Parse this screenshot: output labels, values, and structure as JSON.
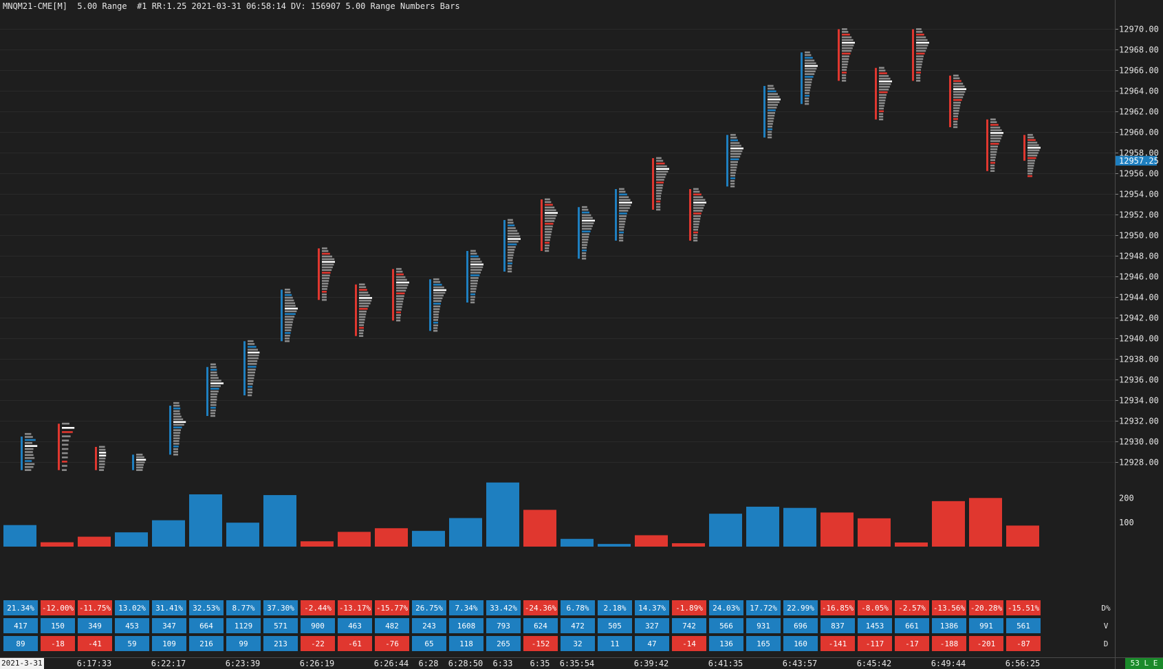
{
  "header": {
    "text": "MNQM21-CME[M]  5.00 Range  #1 RR:1.25 2021-03-31 06:58:14 DV: 156907 5.00 Range Numbers Bars"
  },
  "colors": {
    "background": "#1e1e1e",
    "up": "#1e7fc0",
    "down": "#e0372f",
    "profile": "#8c8c8c",
    "poc": "#ffffff",
    "grid": "#2a2a2a",
    "last_price_bg": "#1e7fc0",
    "status_bg": "#1a8a2a"
  },
  "status_badge": "53 L E",
  "date_badge": "2021-3-31",
  "chart_data": {
    "type": "bar",
    "price_axis": {
      "ticks": [
        "12928.00",
        "12930.00",
        "12932.00",
        "12934.00",
        "12936.00",
        "12938.00",
        "12940.00",
        "12942.00",
        "12944.00",
        "12946.00",
        "12948.00",
        "12950.00",
        "12952.00",
        "12954.00",
        "12956.00",
        "12958.00",
        "12960.00",
        "12962.00",
        "12964.00",
        "12966.00",
        "12968.00",
        "12970.00"
      ],
      "last_price": "12957.25",
      "range": [
        12926.5,
        12971.5
      ]
    },
    "volume_axis": {
      "ticks": [
        "100",
        "200"
      ],
      "range": [
        0,
        270
      ]
    },
    "time_labels": [
      {
        "bar": 2,
        "label": "6:17:33"
      },
      {
        "bar": 4,
        "label": "6:22:17"
      },
      {
        "bar": 6,
        "label": "6:23:39"
      },
      {
        "bar": 8,
        "label": "6:26:19"
      },
      {
        "bar": 10,
        "label": "6:26:44"
      },
      {
        "bar": 11,
        "label": "6:28"
      },
      {
        "bar": 12,
        "label": "6:28:50"
      },
      {
        "bar": 13,
        "label": "6:33"
      },
      {
        "bar": 14,
        "label": "6:35"
      },
      {
        "bar": 15,
        "label": "6:35:54"
      },
      {
        "bar": 17,
        "label": "6:39:42"
      },
      {
        "bar": 19,
        "label": "6:41:35"
      },
      {
        "bar": 21,
        "label": "6:43:57"
      },
      {
        "bar": 23,
        "label": "6:45:42"
      },
      {
        "bar": 25,
        "label": "6:49:44"
      },
      {
        "bar": 27,
        "label": "6:56:25"
      }
    ],
    "row_labels": [
      "D%",
      "V",
      "D"
    ],
    "bars": [
      {
        "open": 12927.25,
        "high": 12930.75,
        "low": 12927.25,
        "close": 12930.5,
        "dir": "up",
        "vol": 89,
        "dpct": "21.34%",
        "v": "417",
        "d": "89",
        "pvol": [
          40,
          55,
          80,
          50,
          95,
          60,
          55,
          60,
          70,
          45,
          70,
          60,
          40
        ]
      },
      {
        "open": 12931.75,
        "high": 12931.75,
        "low": 12927.25,
        "close": 12927.25,
        "dir": "down",
        "vol": 18,
        "dpct": "-12.00%",
        "v": "150",
        "d": "-18",
        "pvol": [
          50,
          95,
          80,
          60,
          45,
          40,
          40,
          35,
          35,
          30,
          30,
          25
        ]
      },
      {
        "open": 12929.5,
        "high": 12929.5,
        "low": 12927.25,
        "close": 12927.25,
        "dir": "down",
        "vol": 41,
        "dpct": "-11.75%",
        "v": "349",
        "d": "-41",
        "pvol": [
          35,
          40,
          45,
          45,
          40,
          35,
          35,
          30,
          25
        ]
      },
      {
        "open": 12927.25,
        "high": 12928.75,
        "low": 12927.25,
        "close": 12928.75,
        "dir": "up",
        "vol": 59,
        "dpct": "13.02%",
        "v": "453",
        "d": "59",
        "pvol": [
          40,
          55,
          70,
          60,
          50,
          45,
          40
        ]
      },
      {
        "open": 12928.75,
        "high": 12933.75,
        "low": 12928.75,
        "close": 12933.5,
        "dir": "up",
        "vol": 109,
        "dpct": "31.41%",
        "v": "347",
        "d": "109",
        "pvol": [
          35,
          40,
          45,
          40,
          45,
          55,
          70,
          95,
          80,
          60,
          50,
          45,
          40,
          40,
          35,
          35,
          30,
          25,
          25,
          25
        ]
      },
      {
        "open": 12932.5,
        "high": 12937.5,
        "low": 12932.5,
        "close": 12937.25,
        "dir": "up",
        "vol": 216,
        "dpct": "32.53%",
        "v": "664",
        "d": "216",
        "pvol": [
          30,
          35,
          40,
          40,
          45,
          55,
          80,
          100,
          75,
          60,
          55,
          45,
          40,
          40,
          35,
          35,
          30,
          30,
          25,
          25
        ]
      },
      {
        "open": 12934.5,
        "high": 12939.75,
        "low": 12934.5,
        "close": 12939.75,
        "dir": "up",
        "vol": 99,
        "dpct": "8.77%",
        "v": "1129",
        "d": "99",
        "pvol": [
          35,
          45,
          60,
          75,
          90,
          85,
          80,
          70,
          65,
          60,
          55,
          50,
          45,
          40,
          35,
          30,
          25,
          25,
          25,
          20
        ]
      },
      {
        "open": 12939.75,
        "high": 12944.75,
        "low": 12939.75,
        "close": 12944.75,
        "dir": "up",
        "vol": 213,
        "dpct": "37.30%",
        "v": "571",
        "d": "213",
        "pvol": [
          30,
          35,
          45,
          55,
          65,
          75,
          80,
          100,
          90,
          80,
          70,
          60,
          55,
          50,
          45,
          40,
          35,
          30,
          25,
          25
        ]
      },
      {
        "open": 12948.75,
        "high": 12948.75,
        "low": 12943.75,
        "close": 12943.75,
        "dir": "down",
        "vol": 22,
        "dpct": "-2.44%",
        "v": "900",
        "d": "-22",
        "pvol": [
          30,
          40,
          55,
          75,
          95,
          100,
          90,
          80,
          70,
          60,
          55,
          50,
          45,
          40,
          35,
          30,
          25,
          25,
          25,
          25
        ]
      },
      {
        "open": 12945.25,
        "high": 12945.25,
        "low": 12940.25,
        "close": 12940.25,
        "dir": "down",
        "vol": 61,
        "dpct": "-13.17%",
        "v": "463",
        "d": "-61",
        "pvol": [
          35,
          45,
          55,
          65,
          80,
          100,
          95,
          85,
          70,
          60,
          50,
          45,
          40,
          35,
          30,
          25,
          25,
          25,
          20,
          20
        ]
      },
      {
        "open": 12946.75,
        "high": 12946.75,
        "low": 12941.75,
        "close": 12941.75,
        "dir": "down",
        "vol": 76,
        "dpct": "-15.77%",
        "v": "482",
        "d": "-76",
        "pvol": [
          30,
          40,
          50,
          65,
          80,
          100,
          90,
          80,
          70,
          60,
          55,
          50,
          45,
          40,
          35,
          30,
          25,
          25,
          20,
          20
        ]
      },
      {
        "open": 12940.75,
        "high": 12945.75,
        "low": 12940.75,
        "close": 12945.75,
        "dir": "up",
        "vol": 65,
        "dpct": "26.75%",
        "v": "243",
        "d": "65",
        "pvol": [
          35,
          45,
          60,
          80,
          100,
          90,
          75,
          65,
          55,
          50,
          45,
          40,
          35,
          30,
          30,
          25,
          25,
          25,
          20,
          20
        ]
      },
      {
        "open": 12943.5,
        "high": 12948.5,
        "low": 12943.5,
        "close": 12948.5,
        "dir": "up",
        "vol": 118,
        "dpct": "7.34%",
        "v": "1608",
        "d": "118",
        "pvol": [
          30,
          40,
          55,
          70,
          85,
          100,
          95,
          85,
          75,
          65,
          55,
          50,
          45,
          40,
          35,
          30,
          25,
          25,
          20,
          20
        ]
      },
      {
        "open": 12946.5,
        "high": 12951.5,
        "low": 12946.5,
        "close": 12951.5,
        "dir": "up",
        "vol": 265,
        "dpct": "33.42%",
        "v": "793",
        "d": "265",
        "pvol": [
          30,
          35,
          45,
          55,
          70,
          85,
          95,
          100,
          80,
          65,
          55,
          45,
          40,
          35,
          30,
          25,
          25,
          20,
          20,
          20
        ]
      },
      {
        "open": 12953.5,
        "high": 12953.5,
        "low": 12948.5,
        "close": 12948.5,
        "dir": "down",
        "vol": 152,
        "dpct": "-24.36%",
        "v": "624",
        "d": "-152",
        "pvol": [
          30,
          40,
          55,
          70,
          85,
          100,
          90,
          80,
          70,
          60,
          55,
          50,
          45,
          40,
          35,
          30,
          25,
          25,
          20,
          20
        ]
      },
      {
        "open": 12947.75,
        "high": 12952.75,
        "low": 12947.75,
        "close": 12952.75,
        "dir": "up",
        "vol": 32,
        "dpct": "6.78%",
        "v": "472",
        "d": "32",
        "pvol": [
          30,
          40,
          50,
          65,
          80,
          100,
          90,
          80,
          70,
          60,
          50,
          45,
          40,
          35,
          30,
          25,
          25,
          20,
          20,
          20
        ]
      },
      {
        "open": 12949.5,
        "high": 12954.5,
        "low": 12949.5,
        "close": 12954.5,
        "dir": "up",
        "vol": 11,
        "dpct": "2.18%",
        "v": "505",
        "d": "11",
        "pvol": [
          30,
          40,
          55,
          70,
          85,
          100,
          90,
          80,
          65,
          55,
          50,
          45,
          40,
          35,
          30,
          25,
          25,
          20,
          20,
          20
        ]
      },
      {
        "open": 12957.5,
        "high": 12957.5,
        "low": 12952.5,
        "close": 12952.5,
        "dir": "down",
        "vol": 47,
        "dpct": "14.37%",
        "v": "327",
        "d": "47",
        "pvol": [
          30,
          45,
          60,
          80,
          100,
          90,
          75,
          65,
          55,
          50,
          45,
          40,
          35,
          30,
          25,
          25,
          20,
          20,
          20,
          20
        ]
      },
      {
        "open": 12954.5,
        "high": 12954.5,
        "low": 12949.5,
        "close": 12949.5,
        "dir": "down",
        "vol": 14,
        "dpct": "-1.89%",
        "v": "742",
        "d": "-14",
        "pvol": [
          30,
          40,
          55,
          70,
          90,
          100,
          85,
          75,
          65,
          55,
          50,
          45,
          40,
          35,
          30,
          25,
          25,
          20,
          20,
          20
        ]
      },
      {
        "open": 12954.75,
        "high": 12959.75,
        "low": 12954.75,
        "close": 12959.75,
        "dir": "up",
        "vol": 136,
        "dpct": "24.03%",
        "v": "566",
        "d": "136",
        "pvol": [
          30,
          40,
          50,
          65,
          80,
          100,
          90,
          80,
          70,
          60,
          50,
          45,
          40,
          35,
          30,
          25,
          25,
          20,
          20,
          20
        ]
      },
      {
        "open": 12959.5,
        "high": 12964.5,
        "low": 12959.5,
        "close": 12964.5,
        "dir": "up",
        "vol": 165,
        "dpct": "17.72%",
        "v": "931",
        "d": "165",
        "pvol": [
          35,
          45,
          60,
          75,
          90,
          100,
          90,
          75,
          65,
          55,
          50,
          45,
          40,
          35,
          30,
          25,
          25,
          20,
          20,
          20
        ]
      },
      {
        "open": 12962.75,
        "high": 12967.75,
        "low": 12962.75,
        "close": 12967.75,
        "dir": "up",
        "vol": 160,
        "dpct": "22.99%",
        "v": "696",
        "d": "160",
        "pvol": [
          30,
          40,
          55,
          70,
          85,
          100,
          90,
          80,
          70,
          60,
          50,
          45,
          40,
          35,
          30,
          25,
          25,
          20,
          20,
          20
        ]
      },
      {
        "open": 12970.0,
        "high": 12970.0,
        "low": 12965.0,
        "close": 12965.0,
        "dir": "down",
        "vol": 141,
        "dpct": "-16.85%",
        "v": "837",
        "d": "-141",
        "pvol": [
          30,
          40,
          55,
          70,
          85,
          100,
          90,
          80,
          70,
          60,
          50,
          45,
          40,
          35,
          30,
          25,
          25,
          20,
          20,
          20
        ]
      },
      {
        "open": 12966.25,
        "high": 12966.25,
        "low": 12961.25,
        "close": 12961.25,
        "dir": "down",
        "vol": 117,
        "dpct": "-8.05%",
        "v": "1453",
        "d": "-117",
        "pvol": [
          30,
          40,
          55,
          70,
          85,
          100,
          90,
          80,
          70,
          60,
          50,
          45,
          40,
          35,
          30,
          25,
          25,
          20,
          20,
          20
        ]
      },
      {
        "open": 12970.0,
        "high": 12970.0,
        "low": 12965.0,
        "close": 12965.0,
        "dir": "down",
        "vol": 17,
        "dpct": "-2.57%",
        "v": "661",
        "d": "-17",
        "pvol": [
          30,
          40,
          55,
          70,
          85,
          100,
          90,
          80,
          70,
          60,
          50,
          45,
          40,
          35,
          30,
          25,
          25,
          20,
          20,
          20
        ]
      },
      {
        "open": 12965.5,
        "high": 12965.5,
        "low": 12960.5,
        "close": 12960.5,
        "dir": "down",
        "vol": 188,
        "dpct": "-13.56%",
        "v": "1386",
        "d": "-188",
        "pvol": [
          30,
          40,
          55,
          70,
          85,
          100,
          90,
          80,
          70,
          60,
          50,
          45,
          40,
          35,
          30,
          25,
          25,
          20,
          20,
          20
        ]
      },
      {
        "open": 12961.25,
        "high": 12961.25,
        "low": 12956.25,
        "close": 12956.25,
        "dir": "down",
        "vol": 201,
        "dpct": "-20.28%",
        "v": "991",
        "d": "-201",
        "pvol": [
          30,
          40,
          55,
          70,
          85,
          100,
          90,
          80,
          70,
          60,
          50,
          45,
          40,
          35,
          30,
          25,
          25,
          20,
          20,
          20
        ]
      },
      {
        "open": 12959.75,
        "high": 12959.75,
        "low": 12955.75,
        "close": 12957.25,
        "dir": "down",
        "vol": 87,
        "dpct": "-15.51%",
        "v": "561",
        "d": "-87",
        "pvol": [
          30,
          40,
          55,
          70,
          85,
          100,
          90,
          80,
          70,
          60,
          50,
          45,
          40,
          35,
          30,
          25,
          25
        ]
      }
    ]
  }
}
